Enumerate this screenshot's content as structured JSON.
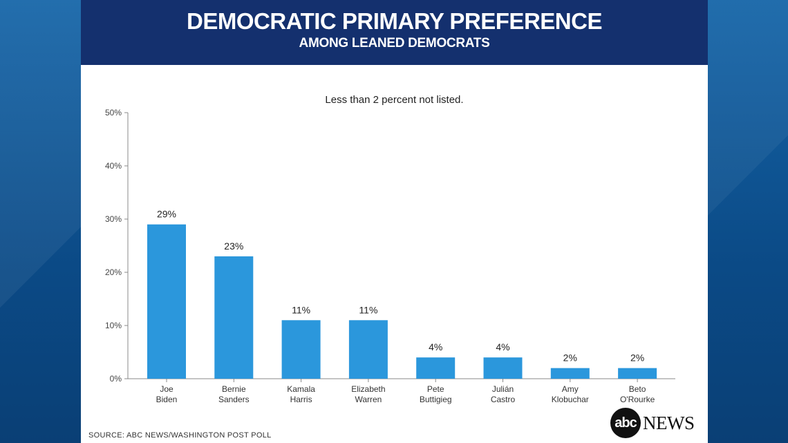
{
  "header": {
    "title": "DEMOCRATIC PRIMARY PREFERENCE",
    "subtitle": "AMONG LEANED DEMOCRATS"
  },
  "note": "Less than 2 percent not listed.",
  "source": "SOURCE: ABC NEWS/WASHINGTON POST POLL",
  "logo": {
    "circle_text": "abc",
    "news_text": "NEWS"
  },
  "colors": {
    "bar": "#2b97dc",
    "header": "#14306e",
    "axis": "#888888"
  },
  "chart_data": {
    "type": "bar",
    "categories": [
      [
        "Joe",
        "Biden"
      ],
      [
        "Bernie",
        "Sanders"
      ],
      [
        "Kamala",
        "Harris"
      ],
      [
        "Elizabeth",
        "Warren"
      ],
      [
        "Pete",
        "Buttigieg"
      ],
      [
        "Julián",
        "Castro"
      ],
      [
        "Amy",
        "Klobuchar"
      ],
      [
        "Beto",
        "O'Rourke"
      ]
    ],
    "values": [
      29,
      23,
      11,
      11,
      4,
      4,
      2,
      2
    ],
    "value_labels": [
      "29%",
      "23%",
      "11%",
      "11%",
      "4%",
      "4%",
      "2%",
      "2%"
    ],
    "ylim": [
      0,
      50
    ],
    "yticks": [
      0,
      10,
      20,
      30,
      40,
      50
    ],
    "ytick_labels": [
      "0%",
      "10%",
      "20%",
      "30%",
      "40%",
      "50%"
    ],
    "grid": false
  }
}
